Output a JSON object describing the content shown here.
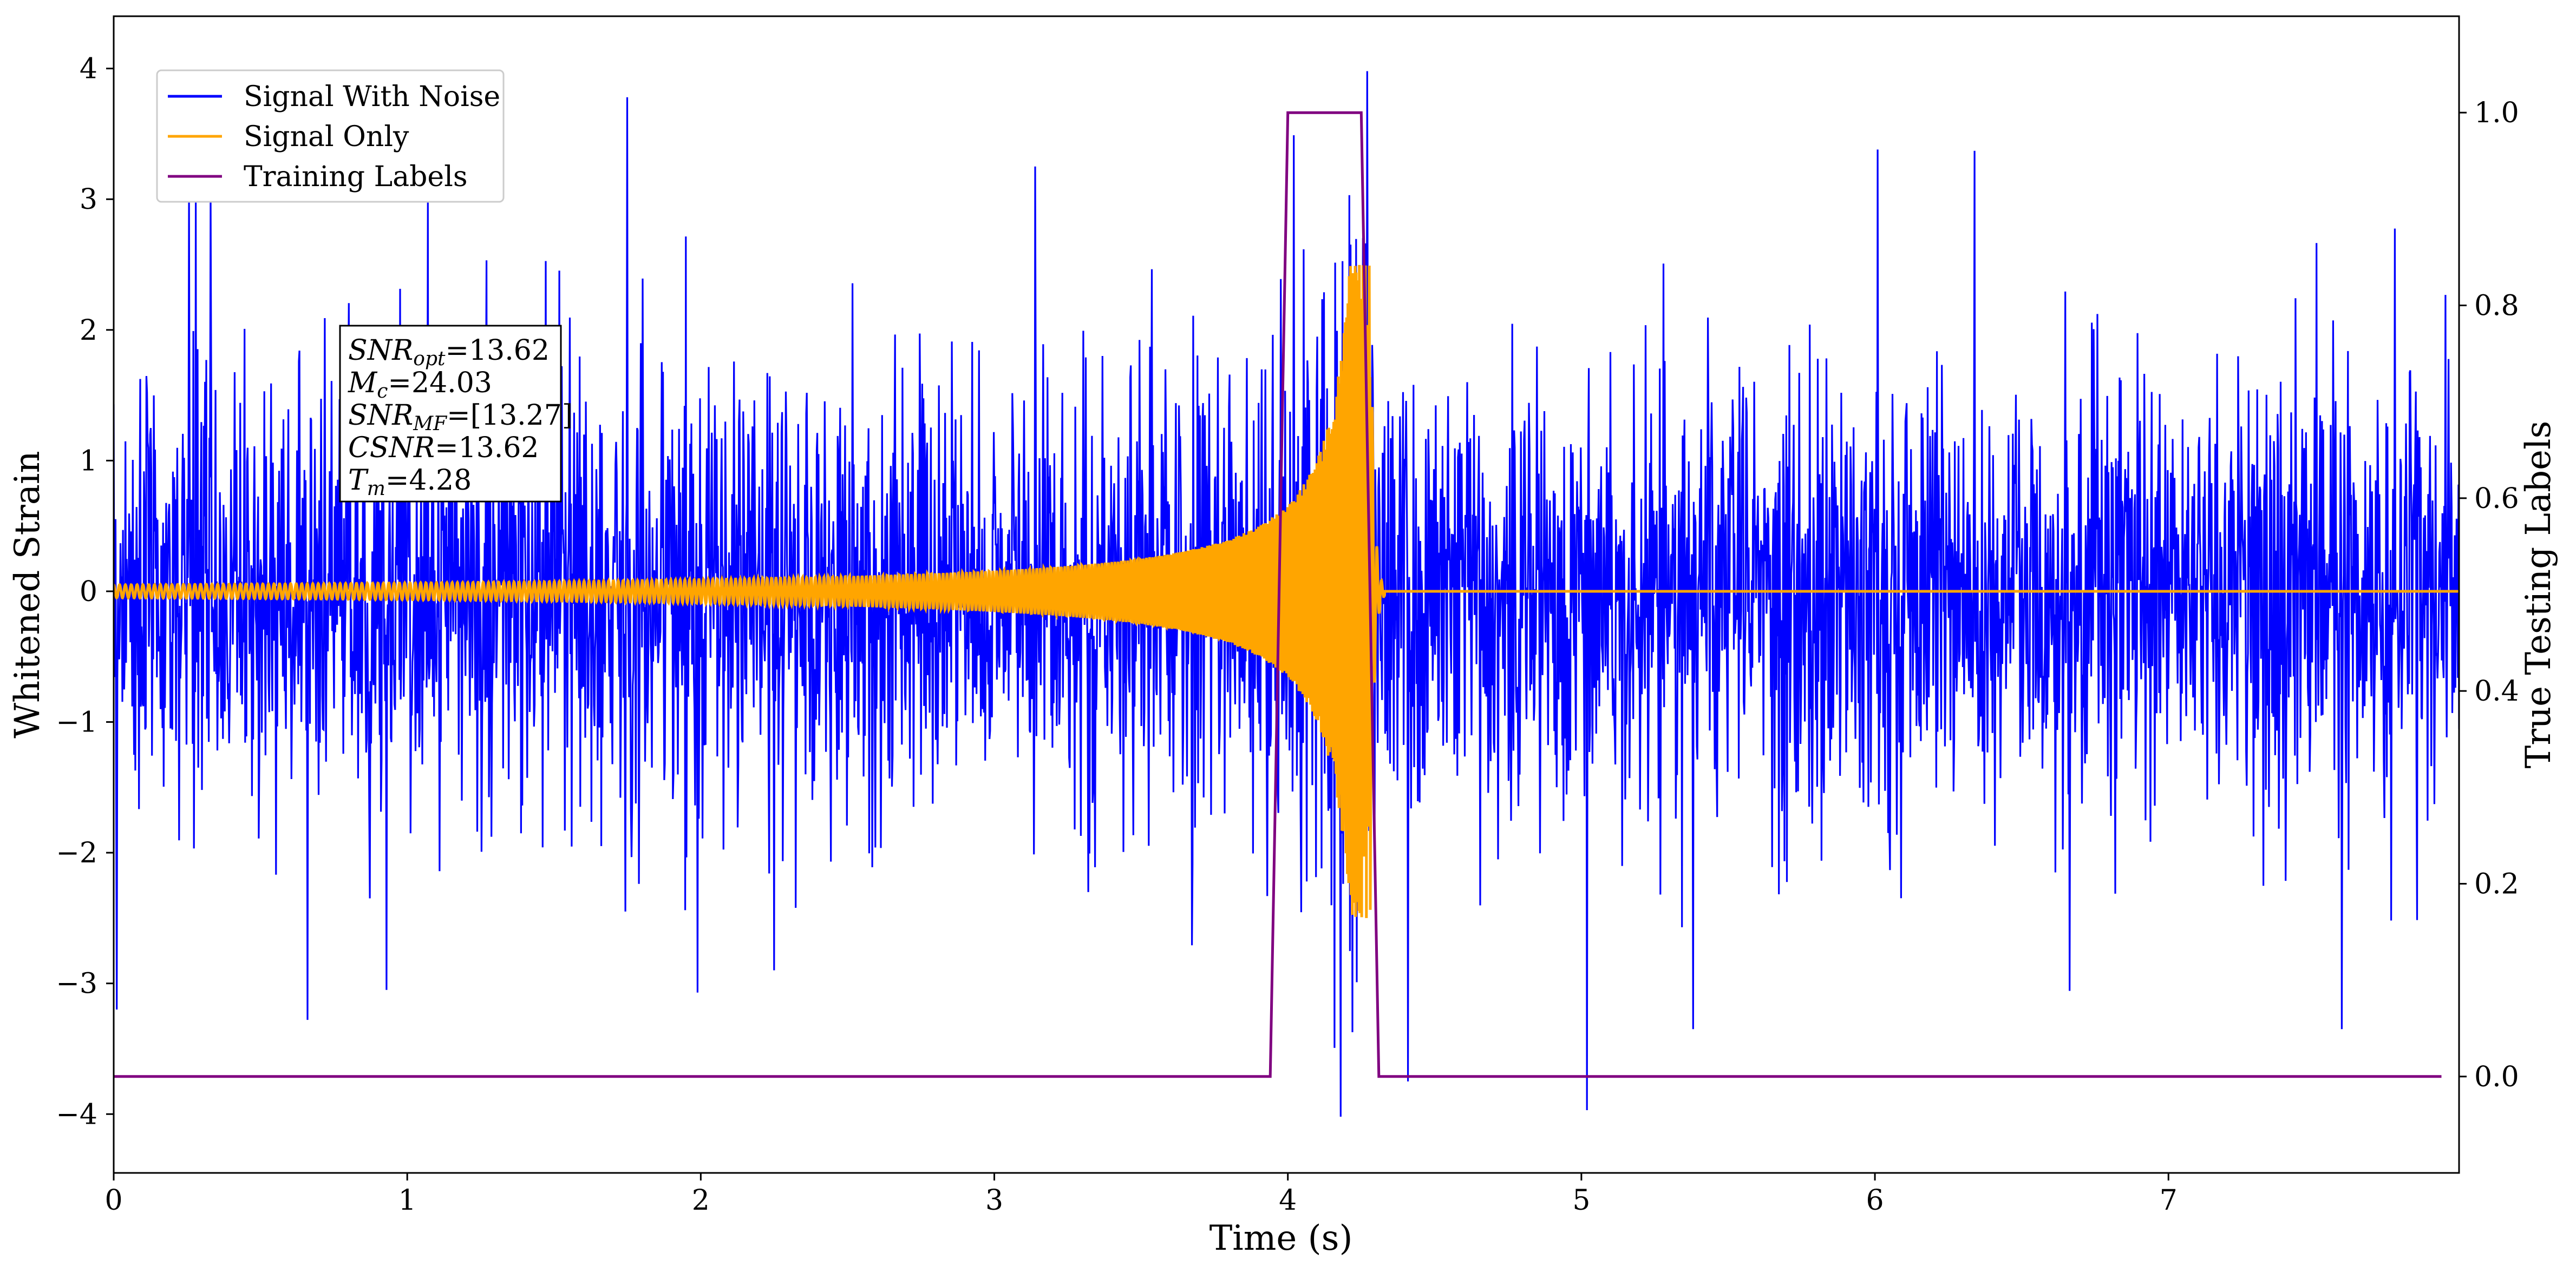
{
  "chart_data": {
    "type": "line",
    "xlabel": "Time (s)",
    "ylabel_left": "Whitened Strain",
    "ylabel_right": "True Testing Labels",
    "xlim": [
      0,
      7.99
    ],
    "ylim_left": [
      -4.45,
      4.4
    ],
    "ylim_right": [
      -0.1,
      1.1
    ],
    "x_ticks": [
      0,
      1,
      2,
      3,
      4,
      5,
      6,
      7
    ],
    "x_tick_labels": [
      "0",
      "1",
      "2",
      "3",
      "4",
      "5",
      "6",
      "7"
    ],
    "y_left_ticks": [
      -4,
      -3,
      -2,
      -1,
      0,
      1,
      2,
      3,
      4
    ],
    "y_left_tick_labels": [
      "−4",
      "−3",
      "−2",
      "−1",
      "0",
      "1",
      "2",
      "3",
      "4"
    ],
    "y_right_ticks": [
      0.0,
      0.2,
      0.4,
      0.6,
      0.8,
      1.0
    ],
    "y_right_tick_labels": [
      "0.0",
      "0.2",
      "0.4",
      "0.6",
      "0.8",
      "1.0"
    ],
    "grid": false,
    "legend": {
      "placement": "top-left",
      "entries": [
        {
          "name": "Signal With Noise",
          "color": "#0000ff"
        },
        {
          "name": "Signal Only",
          "color": "#ffa500"
        },
        {
          "name": "Training Labels",
          "color": "#800080"
        }
      ]
    },
    "series": [
      {
        "name": "Signal With Noise",
        "axis": "left",
        "color": "#0000ff",
        "kind": "noise",
        "x_range": [
          0,
          7.99
        ],
        "typical_std": 0.85,
        "min": -4.02,
        "max": 3.98,
        "notable_spikes": [
          {
            "x": 0.01,
            "y": -3.2
          },
          {
            "x": 0.28,
            "y": 3.02
          },
          {
            "x": 0.33,
            "y": 3.05
          },
          {
            "x": 0.93,
            "y": -3.05
          },
          {
            "x": 1.07,
            "y": 2.98
          },
          {
            "x": 1.75,
            "y": 3.78
          },
          {
            "x": 1.99,
            "y": -3.07
          },
          {
            "x": 2.25,
            "y": -2.9
          },
          {
            "x": 3.14,
            "y": 3.25
          },
          {
            "x": 4.18,
            "y": -4.02
          },
          {
            "x": 4.27,
            "y": 3.98
          },
          {
            "x": 4.41,
            "y": -3.75
          },
          {
            "x": 5.02,
            "y": -3.97
          },
          {
            "x": 5.38,
            "y": -3.35
          },
          {
            "x": 6.01,
            "y": 3.38
          },
          {
            "x": 6.34,
            "y": 3.37
          },
          {
            "x": 7.59,
            "y": -3.35
          }
        ]
      },
      {
        "name": "Signal Only",
        "axis": "left",
        "color": "#ffa500",
        "kind": "chirp",
        "x_range": [
          0,
          7.99
        ],
        "merger_time": 4.28,
        "start_amplitude": 0.05,
        "peak_amplitude": 2.5,
        "min": -2.8,
        "max": 2.5,
        "post_merger_value": 0.0
      },
      {
        "name": "Training Labels",
        "axis": "right",
        "color": "#800080",
        "x": [
          0.0,
          3.94,
          4.0,
          4.25,
          4.31,
          7.93
        ],
        "y": [
          0.0,
          0.0,
          1.0,
          1.0,
          0.0,
          0.0
        ]
      }
    ],
    "annotation": {
      "lines": [
        {
          "name": "SNR",
          "sub": "opt",
          "value": "=13.62"
        },
        {
          "name": "M",
          "sub": "c",
          "value": "=24.03"
        },
        {
          "name": "SNR",
          "sub": "MF",
          "value": "=[13.27]"
        },
        {
          "name": "CSNR",
          "sub": "",
          "value": "=13.62"
        },
        {
          "name": "T",
          "sub": "m",
          "value": "=4.28"
        }
      ]
    }
  }
}
